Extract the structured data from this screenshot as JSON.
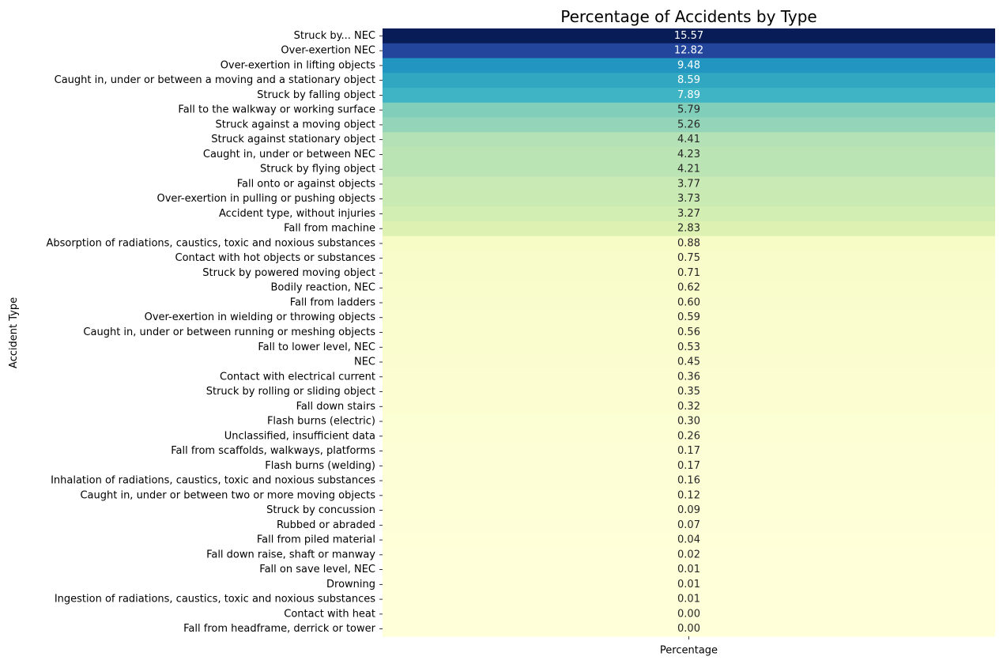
{
  "chart_data": {
    "type": "heatmap",
    "title": "Percentage of Accidents by Type",
    "xlabel": "",
    "ylabel": "Accident Type",
    "columns": [
      "Percentage"
    ],
    "colormap": "YlGnBu",
    "value_range": [
      0,
      15.57
    ],
    "colorbar": false,
    "rows": [
      {
        "label": "Struck by... NEC",
        "value": 15.57
      },
      {
        "label": "Over-exertion NEC",
        "value": 12.82
      },
      {
        "label": "Over-exertion in lifting objects",
        "value": 9.48
      },
      {
        "label": "Caught in, under or between a moving and a stationary object",
        "value": 8.59
      },
      {
        "label": "Struck by falling object",
        "value": 7.89
      },
      {
        "label": "Fall to the walkway or working surface",
        "value": 5.79
      },
      {
        "label": "Struck against a moving object",
        "value": 5.26
      },
      {
        "label": "Struck against stationary object",
        "value": 4.41
      },
      {
        "label": "Caught in, under or between NEC",
        "value": 4.23
      },
      {
        "label": "Struck by flying object",
        "value": 4.21
      },
      {
        "label": "Fall onto or against objects",
        "value": 3.77
      },
      {
        "label": "Over-exertion in pulling or pushing objects",
        "value": 3.73
      },
      {
        "label": "Accident type, without injuries",
        "value": 3.27
      },
      {
        "label": "Fall from machine",
        "value": 2.83
      },
      {
        "label": "Absorption of radiations, caustics, toxic and noxious substances",
        "value": 0.88
      },
      {
        "label": "Contact with hot objects or substances",
        "value": 0.75
      },
      {
        "label": "Struck by powered moving object",
        "value": 0.71
      },
      {
        "label": "Bodily reaction, NEC",
        "value": 0.62
      },
      {
        "label": "Fall from ladders",
        "value": 0.6
      },
      {
        "label": "Over-exertion in wielding or throwing objects",
        "value": 0.59
      },
      {
        "label": "Caught in, under or between running or meshing objects",
        "value": 0.56
      },
      {
        "label": "Fall to lower level, NEC",
        "value": 0.53
      },
      {
        "label": "NEC",
        "value": 0.45
      },
      {
        "label": "Contact with electrical current",
        "value": 0.36
      },
      {
        "label": "Struck by rolling or sliding object",
        "value": 0.35
      },
      {
        "label": "Fall down stairs",
        "value": 0.32
      },
      {
        "label": "Flash burns (electric)",
        "value": 0.3
      },
      {
        "label": "Unclassified, insufficient data",
        "value": 0.26
      },
      {
        "label": "Fall from scaffolds, walkways, platforms",
        "value": 0.17
      },
      {
        "label": "Flash burns (welding)",
        "value": 0.17
      },
      {
        "label": "Inhalation of radiations, caustics, toxic and noxious substances",
        "value": 0.16
      },
      {
        "label": "Caught in, under or between two or more moving objects",
        "value": 0.12
      },
      {
        "label": "Struck by concussion",
        "value": 0.09
      },
      {
        "label": "Rubbed or abraded",
        "value": 0.07
      },
      {
        "label": "Fall from piled material",
        "value": 0.04
      },
      {
        "label": "Fall down raise, shaft or manway",
        "value": 0.02
      },
      {
        "label": "Fall on save level, NEC",
        "value": 0.01
      },
      {
        "label": "Drowning",
        "value": 0.01
      },
      {
        "label": "Ingestion of radiations, caustics, toxic and noxious substances",
        "value": 0.01
      },
      {
        "label": "Contact with heat",
        "value": 0.0
      },
      {
        "label": "Fall from headframe, derrick or tower",
        "value": 0.0
      }
    ]
  }
}
